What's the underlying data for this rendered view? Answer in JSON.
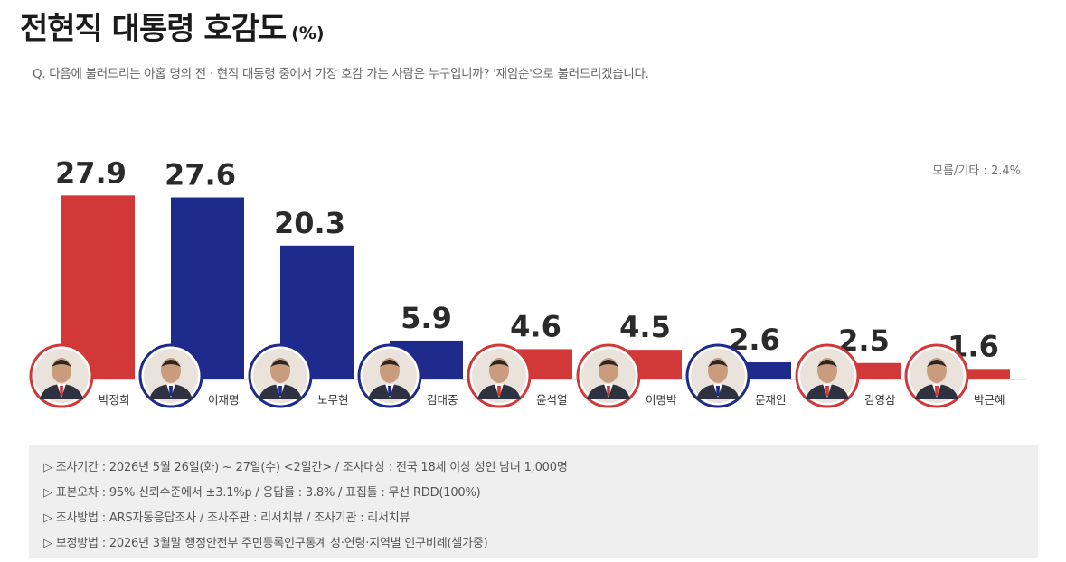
{
  "title": "전현직 대통령 호감도",
  "title_unit": "(%)",
  "question": "Q. 다음에 불러드리는 아홉 명의 전 · 현직 대통령 중에서 가장 호감 가는 사람은 누구입니까? '재임순'으로 불러드리겠습니다.",
  "others_note": "모름/기타 : 2.4%",
  "colors": {
    "red": "#d23838",
    "blue": "#1e2a8c",
    "axis": "#d8d8d8",
    "label": "#333333"
  },
  "chart_data": {
    "type": "bar",
    "title": "전현직 대통령 호감도",
    "unit": "%",
    "categories": [
      "박정희",
      "이재명",
      "노무현",
      "김대중",
      "윤석열",
      "이명박",
      "문재인",
      "김영삼",
      "박근혜"
    ],
    "values": [
      27.9,
      27.6,
      20.3,
      5.9,
      4.6,
      4.5,
      2.6,
      2.5,
      1.6
    ],
    "value_labels": [
      "27.9",
      "27.6",
      "20.3",
      "5.9",
      "4.6",
      "4.5",
      "2.6",
      "2.5",
      "1.6"
    ],
    "bar_colors": [
      "red",
      "blue",
      "blue",
      "blue",
      "red",
      "red",
      "blue",
      "red",
      "red"
    ],
    "ylim": [
      0,
      30
    ],
    "grid": false,
    "legend": "none"
  },
  "notes": [
    "▷ 조사기간 : 2026년 5월 26일(화) ~ 27일(수) <2일간> / 조사대상 : 전국 18세 이상 성인 남녀 1,000명",
    "▷ 표본오차 : 95% 신뢰수준에서 ±3.1%p / 응답률 : 3.8% / 표집틀 : 무선 RDD(100%)",
    "▷ 조사방법 : ARS자동응답조사 / 조사주관 : 리서치뷰 / 조사기관 : 리서치뷰",
    "▷ 보정방법 : 2026년 3월말 행정안전부 주민등록인구통계 성·연령·지역별 인구비례(셀가중)"
  ]
}
